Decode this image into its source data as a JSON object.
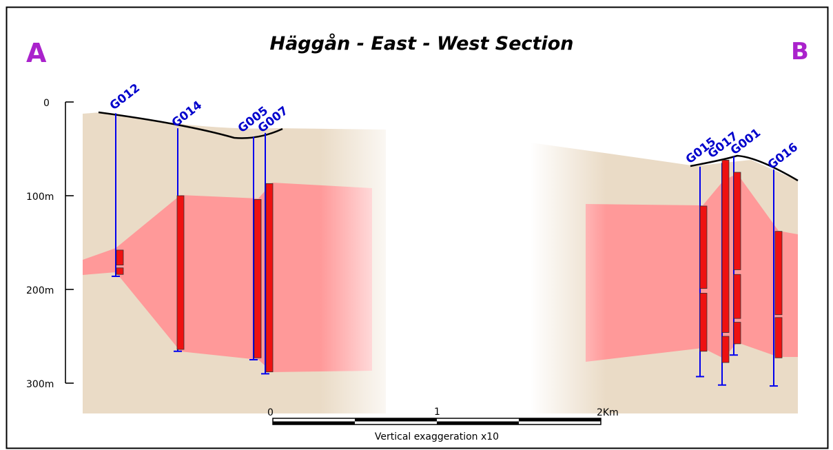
{
  "title": "Häggån - East - West Section",
  "section_start_label": "A",
  "section_end_label": "B",
  "colors": {
    "frame": "#000000",
    "host_rock": "#eadbc6",
    "mineralized_zone": "#ff9999",
    "intercept": "#ee1111",
    "drill_trace": "#0000ee",
    "hole_label": "#0000cc",
    "section_letter": "#aa22cc"
  },
  "depth_axis": {
    "ticks": [
      "0",
      "100m",
      "200m",
      "300m"
    ]
  },
  "scale_bar": {
    "labels": [
      "0",
      "1",
      "2Km"
    ],
    "caption": "Vertical exaggeration x10"
  },
  "drill_holes": [
    {
      "name": "G012",
      "collar_m": 12,
      "end_m": 186,
      "intercepts": [
        [
          158,
          174
        ],
        [
          177,
          184
        ]
      ]
    },
    {
      "name": "G014",
      "collar_m": 28,
      "end_m": 266,
      "intercepts": [
        [
          100,
          264
        ]
      ]
    },
    {
      "name": "G005",
      "collar_m": 37,
      "end_m": 275,
      "intercepts": [
        [
          104,
          273
        ]
      ]
    },
    {
      "name": "G007",
      "collar_m": 33,
      "end_m": 290,
      "intercepts": [
        [
          87,
          288
        ]
      ]
    },
    {
      "name": "G015",
      "collar_m": 69,
      "end_m": 293,
      "intercepts": [
        [
          111,
          199
        ],
        [
          204,
          266
        ]
      ]
    },
    {
      "name": "G017",
      "collar_m": 65,
      "end_m": 302,
      "intercepts": [
        [
          62,
          246
        ],
        [
          250,
          278
        ]
      ]
    },
    {
      "name": "G001",
      "collar_m": 58,
      "end_m": 270,
      "intercepts": [
        [
          75,
          179
        ],
        [
          184,
          231
        ],
        [
          235,
          258
        ]
      ]
    },
    {
      "name": "G016",
      "collar_m": 72,
      "end_m": 303,
      "intercepts": [
        [
          138,
          227
        ],
        [
          230,
          273
        ]
      ]
    }
  ]
}
